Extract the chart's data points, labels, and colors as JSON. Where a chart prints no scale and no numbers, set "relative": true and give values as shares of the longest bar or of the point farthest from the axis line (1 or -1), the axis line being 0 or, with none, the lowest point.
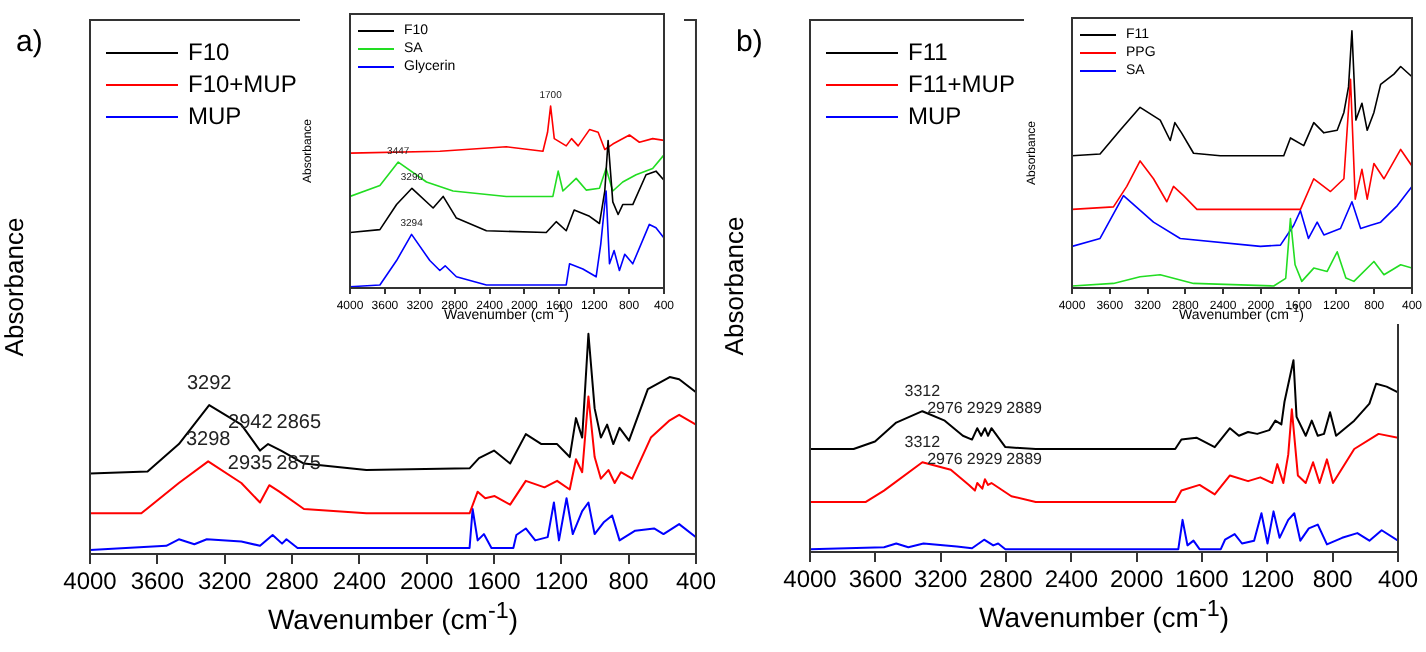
{
  "chart_data": [
    {
      "type": "line",
      "xlabel": "Wavenumber (cm$^{-1}$)",
      "ylabel": "Absorbance",
      "relative": true,
      "tick_labels": "x",
      "legend": "top left",
      "xlim": [
        4000,
        400
      ],
      "xticks": [
        4000,
        3600,
        3200,
        2800,
        2400,
        2000,
        1600,
        1200,
        800,
        400
      ],
      "series": [
        {
          "name": "F10",
          "color": "#000000",
          "x": [
            4000,
            3658,
            3472,
            3292,
            3101,
            2990,
            2942,
            2865,
            2729,
            2358,
            1745,
            1689,
            1600,
            1504,
            1411,
            1318,
            1225,
            1150,
            1113,
            1076,
            1039,
            1002,
            965,
            928,
            891,
            854,
            798,
            686,
            556,
            500,
            400
          ],
          "values": [
            0.354,
            0.363,
            0.49,
            0.67,
            0.58,
            0.46,
            0.49,
            0.46,
            0.4,
            0.37,
            0.378,
            0.425,
            0.46,
            0.4,
            0.536,
            0.49,
            0.49,
            0.43,
            0.61,
            0.52,
            1.0,
            0.655,
            0.52,
            0.58,
            0.49,
            0.565,
            0.506,
            0.744,
            0.8,
            0.79,
            0.73
          ]
        },
        {
          "name": "F10+MUP",
          "color": "#ff0000",
          "x": [
            4000,
            3695,
            3472,
            3298,
            3101,
            2990,
            2935,
            2875,
            2729,
            2358,
            1745,
            1697,
            1652,
            1596,
            1504,
            1411,
            1300,
            1225,
            1150,
            1113,
            1076,
            1039,
            1002,
            965,
            920,
            883,
            846,
            779,
            668,
            556,
            500,
            400
          ],
          "values": [
            0.17,
            0.17,
            0.31,
            0.41,
            0.31,
            0.22,
            0.3,
            0.27,
            0.19,
            0.17,
            0.17,
            0.27,
            0.24,
            0.25,
            0.21,
            0.32,
            0.29,
            0.32,
            0.28,
            0.42,
            0.36,
            0.71,
            0.43,
            0.33,
            0.37,
            0.31,
            0.36,
            0.33,
            0.52,
            0.6,
            0.625,
            0.58
          ]
        },
        {
          "name": "MUP",
          "color": "#0000ff",
          "x": [
            4000,
            3547,
            3472,
            3380,
            3306,
            3101,
            2990,
            2915,
            2859,
            2833,
            2767,
            1745,
            1727,
            1697,
            1660,
            1615,
            1485,
            1467,
            1411,
            1355,
            1281,
            1244,
            1214,
            1169,
            1132,
            1076,
            1039,
            1002,
            946,
            898,
            854,
            761,
            649,
            593,
            500,
            400
          ],
          "values": [
            0,
            0.02,
            0.05,
            0.027,
            0.05,
            0.04,
            0.02,
            0.07,
            0.03,
            0.05,
            0.01,
            0.01,
            0.19,
            0.045,
            0.074,
            0.01,
            0.01,
            0.07,
            0.1,
            0.045,
            0.06,
            0.22,
            0.045,
            0.24,
            0.074,
            0.18,
            0.22,
            0.074,
            0.13,
            0.16,
            0.045,
            0.09,
            0.1,
            0.074,
            0.12,
            0.06
          ]
        }
      ],
      "annotations": [
        "a)",
        {
          "text": "3292",
          "x": 3292,
          "y": 0.67
        },
        {
          "text": "2942",
          "x": 2942,
          "y": 0.49
        },
        {
          "text": "2865",
          "x": 2865,
          "y": 0.46
        },
        {
          "text": "3298",
          "x": 3298,
          "y": 0.41
        },
        {
          "text": "2935",
          "x": 2935,
          "y": 0.3
        },
        {
          "text": "2875",
          "x": 2875,
          "y": 0.27
        }
      ]
    },
    {
      "type": "line",
      "xlabel": "Wavenumber (cm$^{-1}$)",
      "ylabel": "Absorbance",
      "relative": true,
      "tick_labels": "x",
      "legend": "top left",
      "xlim": [
        4000,
        400
      ],
      "xticks": [
        4000,
        3600,
        3200,
        2800,
        2400,
        2000,
        1600,
        1200,
        800,
        400
      ],
      "series": [
        {
          "name": "F10",
          "color": "#000000",
          "x": [
            4000,
            3657,
            3466,
            3290,
            3047,
            2932,
            2780,
            2436,
            1750,
            1636,
            1521,
            1430,
            1254,
            1140,
            1079,
            1041,
            987,
            926,
            873,
            758,
            606,
            492,
            400
          ],
          "values": [
            0.3,
            0.316,
            0.455,
            0.545,
            0.436,
            0.5,
            0.38,
            0.31,
            0.3,
            0.36,
            0.31,
            0.425,
            0.39,
            0.35,
            0.53,
            0.81,
            0.47,
            0.4,
            0.455,
            0.455,
            0.62,
            0.64,
            0.59
          ]
        },
        {
          "name": "SA",
          "color": "#22dd22",
          "x": [
            4000,
            3657,
            3447,
            3123,
            2818,
            2208,
            1674,
            1613,
            1559,
            1407,
            1292,
            1140,
            1064,
            987,
            873,
            720,
            530,
            400
          ],
          "values": [
            0.5,
            0.56,
            0.69,
            0.58,
            0.53,
            0.5,
            0.5,
            0.64,
            0.53,
            0.6,
            0.535,
            0.545,
            0.655,
            0.53,
            0.58,
            0.62,
            0.655,
            0.73
          ]
        },
        {
          "color": "#ff0000",
          "x": [
            4000,
            2970,
            2208,
            1788,
            1735,
            1700,
            1658,
            1521,
            1460,
            1384,
            1254,
            1155,
            1079,
            987,
            796,
            682,
            530,
            400
          ],
          "values": [
            0.74,
            0.75,
            0.775,
            0.75,
            0.855,
            1.0,
            0.82,
            0.78,
            0.82,
            0.78,
            0.87,
            0.855,
            0.76,
            0.79,
            0.84,
            0.8,
            0.82,
            0.81
          ]
        },
        {
          "name": "Glycerin",
          "color": "#0000ff",
          "x": [
            4000,
            3657,
            3466,
            3294,
            3085,
            2970,
            2909,
            2780,
            2436,
            1521,
            1483,
            1330,
            1178,
            1125,
            1064,
            1025,
            972,
            911,
            850,
            758,
            568,
            492,
            400
          ],
          "values": [
            0,
            0.01,
            0.145,
            0.29,
            0.145,
            0.09,
            0.116,
            0.055,
            0.01,
            0.01,
            0.127,
            0.098,
            0.055,
            0.236,
            0.53,
            0.127,
            0.2,
            0.09,
            0.18,
            0.127,
            0.345,
            0.327,
            0.27
          ]
        }
      ],
      "annotations": [
        {
          "text": "1700",
          "x": 1700,
          "y": 1.0
        },
        {
          "text": "3447",
          "x": 3447,
          "y": 0.69
        },
        {
          "text": "3290",
          "x": 3290,
          "y": 0.545
        },
        {
          "text": "3294",
          "x": 3294,
          "y": 0.29
        }
      ]
    },
    {
      "type": "line",
      "xlabel": "Wavenumber (cm$^{-1}$)",
      "ylabel": "Absorbance",
      "relative": true,
      "tick_labels": "x",
      "legend": "top left",
      "xlim": [
        4000,
        400
      ],
      "xticks": [
        4000,
        3600,
        3200,
        2800,
        2400,
        2000,
        1600,
        1200,
        800,
        400
      ],
      "series": [
        {
          "name": "F11",
          "color": "#000000",
          "x": [
            4000,
            3733,
            3602,
            3472,
            3312,
            3175,
            3064,
            3008,
            2976,
            2952,
            2929,
            2910,
            2889,
            2804,
            2618,
            1764,
            1726,
            1634,
            1522,
            1429,
            1374,
            1318,
            1262,
            1188,
            1151,
            1114,
            1095,
            1040,
            1021,
            965,
            928,
            891,
            853,
            816,
            779,
            668,
            575,
            534,
            470,
            400
          ],
          "values": [
            0.53,
            0.53,
            0.57,
            0.67,
            0.73,
            0.68,
            0.6,
            0.58,
            0.64,
            0.6,
            0.64,
            0.6,
            0.64,
            0.54,
            0.53,
            0.53,
            0.58,
            0.59,
            0.54,
            0.64,
            0.6,
            0.62,
            0.61,
            0.63,
            0.68,
            0.66,
            0.78,
            1.0,
            0.7,
            0.6,
            0.68,
            0.6,
            0.61,
            0.725,
            0.6,
            0.68,
            0.77,
            0.875,
            0.86,
            0.83
          ]
        },
        {
          "name": "F11+MUP",
          "color": "#ff0000",
          "x": [
            4000,
            3658,
            3547,
            3312,
            3138,
            3027,
            2990,
            2976,
            2945,
            2929,
            2910,
            2889,
            2767,
            2618,
            1764,
            1726,
            1615,
            1522,
            1429,
            1318,
            1243,
            1169,
            1139,
            1102,
            1072,
            1050,
            1013,
            965,
            920,
            880,
            835,
            798,
            668,
            519,
            400
          ],
          "values": [
            0.25,
            0.25,
            0.31,
            0.46,
            0.42,
            0.34,
            0.31,
            0.35,
            0.32,
            0.37,
            0.34,
            0.35,
            0.28,
            0.25,
            0.25,
            0.31,
            0.34,
            0.29,
            0.39,
            0.36,
            0.38,
            0.35,
            0.45,
            0.35,
            0.5,
            0.74,
            0.39,
            0.35,
            0.46,
            0.35,
            0.475,
            0.35,
            0.53,
            0.61,
            0.59
          ]
        },
        {
          "name": "MUP",
          "color": "#0000ff",
          "x": [
            4000,
            3547,
            3472,
            3398,
            3305,
            3101,
            3008,
            2934,
            2878,
            2848,
            2804,
            1745,
            1719,
            1689,
            1652,
            1615,
            1485,
            1459,
            1400,
            1355,
            1281,
            1236,
            1199,
            1162,
            1125,
            1072,
            1035,
            998,
            946,
            891,
            835,
            742,
            649,
            575,
            500,
            400
          ],
          "values": [
            0,
            0.01,
            0.03,
            0.01,
            0.03,
            0.014,
            0.005,
            0.05,
            0.02,
            0.03,
            0,
            0,
            0.155,
            0.02,
            0.045,
            0,
            0,
            0.05,
            0.08,
            0.03,
            0.045,
            0.19,
            0.03,
            0.2,
            0.06,
            0.155,
            0.19,
            0.045,
            0.11,
            0.13,
            0.025,
            0.06,
            0.085,
            0.045,
            0.1,
            0.045
          ]
        }
      ],
      "annotations": [
        "b)",
        {
          "text": "3312",
          "x": 3312,
          "y": 0.73
        },
        {
          "text": "2976",
          "x": 2976,
          "y": 0.64
        },
        {
          "text": "2929",
          "x": 2929,
          "y": 0.64
        },
        {
          "text": "2889",
          "x": 2889,
          "y": 0.64
        },
        {
          "text": "3312",
          "x": 3312,
          "y": 0.46
        },
        {
          "text": "2976",
          "x": 2976,
          "y": 0.35
        },
        {
          "text": "2929",
          "x": 2929,
          "y": 0.37
        },
        {
          "text": "2889",
          "x": 2889,
          "y": 0.35
        }
      ]
    },
    {
      "type": "line",
      "xlabel": "Wavenumber (cm$^{-1}$)",
      "ylabel": "Absorbance",
      "relative": true,
      "tick_labels": "x",
      "legend": "top left",
      "xlim": [
        4000,
        400
      ],
      "xticks": [
        4000,
        3600,
        3200,
        2800,
        2400,
        2000,
        1600,
        1200,
        800,
        400
      ],
      "series": [
        {
          "name": "F11",
          "color": "#000000",
          "x": [
            4000,
            3703,
            3491,
            3279,
            3066,
            2960,
            2911,
            2840,
            2713,
            2430,
            1758,
            1687,
            1546,
            1440,
            1333,
            1192,
            1121,
            1072,
            1036,
            994,
            930,
            874,
            803,
            732,
            591,
            520,
            400
          ],
          "values": [
            0.51,
            0.517,
            0.61,
            0.7,
            0.65,
            0.57,
            0.64,
            0.6,
            0.52,
            0.51,
            0.51,
            0.58,
            0.55,
            0.64,
            0.6,
            0.61,
            0.68,
            0.78,
            1.0,
            0.65,
            0.716,
            0.61,
            0.68,
            0.79,
            0.83,
            0.86,
            0.82
          ]
        },
        {
          "name": "PPG",
          "color": "#ff0000",
          "x": [
            4000,
            3561,
            3420,
            3279,
            3137,
            2996,
            2925,
            2819,
            2677,
            1581,
            1440,
            1263,
            1121,
            1051,
            1001,
            930,
            874,
            803,
            697,
            520,
            400
          ],
          "values": [
            0.3,
            0.31,
            0.39,
            0.49,
            0.42,
            0.33,
            0.39,
            0.354,
            0.3,
            0.3,
            0.42,
            0.37,
            0.42,
            0.81,
            0.34,
            0.457,
            0.34,
            0.48,
            0.42,
            0.535,
            0.47
          ]
        },
        {
          "color": "#22dd22",
          "x": [
            4000,
            3561,
            3279,
            3066,
            2713,
            1864,
            1737,
            1687,
            1638,
            1567,
            1440,
            1298,
            1192,
            1100,
            1015,
            803,
            697,
            520,
            400
          ],
          "values": [
            0,
            0.01,
            0.036,
            0.044,
            0.01,
            0,
            0.03,
            0.264,
            0.083,
            0.018,
            0.07,
            0.057,
            0.134,
            0.031,
            0.018,
            0.096,
            0.044,
            0.083,
            0.07
          ]
        },
        {
          "name": "SA",
          "color": "#0000ff",
          "x": [
            4000,
            3703,
            3455,
            3137,
            2854,
            2005,
            1793,
            1652,
            1581,
            1496,
            1404,
            1333,
            1157,
            1036,
            944,
            838,
            732,
            555,
            400
          ],
          "values": [
            0.155,
            0.186,
            0.354,
            0.25,
            0.186,
            0.155,
            0.16,
            0.238,
            0.295,
            0.186,
            0.25,
            0.2,
            0.225,
            0.33,
            0.225,
            0.238,
            0.25,
            0.315,
            0.39
          ]
        }
      ]
    }
  ]
}
